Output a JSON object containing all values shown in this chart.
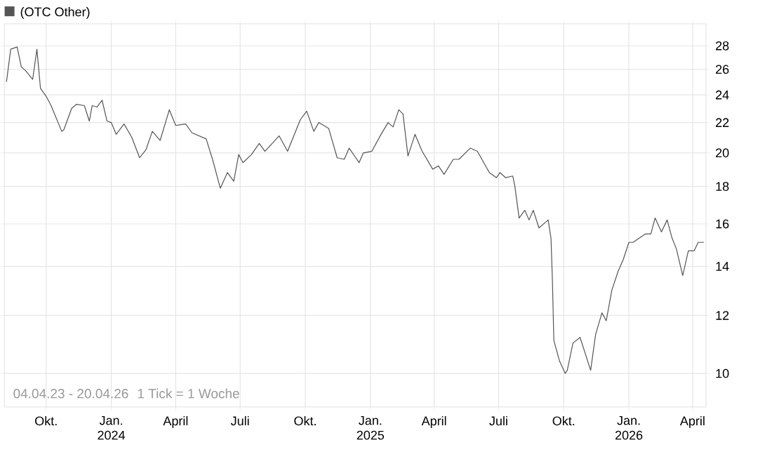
{
  "chart_data": {
    "type": "line",
    "title": "(OTC Other)",
    "annotations": [
      "04.04.23 - 20.04.26",
      "1 Tick = 1 Woche"
    ],
    "x": [
      "2023-08-06",
      "2023-08-12",
      "2023-08-21",
      "2023-08-27",
      "2023-09-02",
      "2023-09-12",
      "2023-09-18",
      "2023-09-23",
      "2023-10-01",
      "2023-10-08",
      "2023-10-23",
      "2023-10-26",
      "2023-11-06",
      "2023-11-13",
      "2023-11-24",
      "2023-12-01",
      "2023-12-05",
      "2023-12-12",
      "2023-12-19",
      "2023-12-26",
      "2024-01-01",
      "2024-01-08",
      "2024-01-19",
      "2024-01-30",
      "2024-02-10",
      "2024-02-19",
      "2024-02-28",
      "2024-03-10",
      "2024-03-23",
      "2024-04-01",
      "2024-04-15",
      "2024-04-24",
      "2024-05-14",
      "2024-05-23",
      "2024-06-03",
      "2024-06-13",
      "2024-06-22",
      "2024-06-29",
      "2024-07-05",
      "2024-07-17",
      "2024-07-28",
      "2024-08-05",
      "2024-08-25",
      "2024-09-06",
      "2024-09-24",
      "2024-10-03",
      "2024-10-13",
      "2024-10-20",
      "2024-11-03",
      "2024-11-15",
      "2024-11-25",
      "2024-12-02",
      "2024-12-16",
      "2024-12-22",
      "2025-01-03",
      "2025-01-16",
      "2025-01-26",
      "2025-02-02",
      "2025-02-10",
      "2025-02-16",
      "2025-02-23",
      "2025-03-05",
      "2025-03-15",
      "2025-03-30",
      "2025-04-07",
      "2025-04-15",
      "2025-04-28",
      "2025-05-06",
      "2025-05-22",
      "2025-06-01",
      "2025-06-18",
      "2025-06-28",
      "2025-07-03",
      "2025-07-11",
      "2025-07-21",
      "2025-07-24",
      "2025-07-30",
      "2025-08-07",
      "2025-08-13",
      "2025-08-19",
      "2025-08-27",
      "2025-09-09",
      "2025-09-13",
      "2025-09-15",
      "2025-09-17",
      "2025-09-25",
      "2025-10-03",
      "2025-10-06",
      "2025-10-14",
      "2025-10-24",
      "2025-11-01",
      "2025-11-08",
      "2025-11-15",
      "2025-11-24",
      "2025-11-30",
      "2025-12-08",
      "2025-12-17",
      "2025-12-24",
      "2026-01-01",
      "2026-01-07",
      "2026-01-24",
      "2026-02-01",
      "2026-02-07",
      "2026-02-16",
      "2026-02-24",
      "2026-03-03",
      "2026-03-09",
      "2026-03-18",
      "2026-03-26",
      "2026-04-03",
      "2026-04-09",
      "2026-04-17"
    ],
    "series": [
      {
        "color": "#555555",
        "values": [
          25.0,
          27.7,
          27.9,
          26.2,
          25.9,
          25.2,
          27.7,
          24.5,
          23.9,
          23.2,
          21.4,
          21.5,
          23.0,
          23.3,
          23.2,
          22.1,
          23.2,
          23.1,
          23.6,
          22.1,
          22.0,
          21.2,
          21.9,
          21.0,
          19.7,
          20.2,
          21.4,
          20.8,
          22.9,
          21.8,
          21.9,
          21.3,
          20.9,
          19.6,
          17.9,
          18.8,
          18.3,
          19.9,
          19.4,
          19.9,
          20.6,
          20.1,
          21.1,
          20.1,
          22.2,
          22.8,
          21.4,
          22.0,
          21.6,
          19.7,
          19.6,
          20.3,
          19.4,
          20.0,
          20.1,
          21.2,
          22.0,
          21.7,
          22.9,
          22.6,
          19.8,
          21.2,
          20.1,
          19.0,
          19.2,
          18.7,
          19.6,
          19.6,
          20.3,
          20.1,
          18.8,
          18.5,
          18.8,
          18.5,
          18.6,
          18.0,
          16.3,
          16.7,
          16.2,
          16.7,
          15.8,
          16.2,
          15.3,
          13.4,
          11.1,
          10.4,
          10.0,
          10.1,
          11.0,
          11.2,
          10.6,
          10.1,
          11.3,
          12.1,
          11.8,
          13.0,
          13.8,
          14.3,
          15.1,
          15.1,
          15.5,
          15.5,
          16.3,
          15.6,
          16.2,
          15.3,
          14.8,
          13.6,
          14.7,
          14.7,
          15.1,
          15.1
        ]
      }
    ],
    "xlim": [
      "2023-08-03",
      "2026-04-20"
    ],
    "xticks": [
      {
        "value": "2023-10-01",
        "label": "Okt."
      },
      {
        "value": "2024-01-01",
        "label": "Jan. 2024"
      },
      {
        "value": "2024-04-01",
        "label": "April"
      },
      {
        "value": "2024-07-01",
        "label": "Juli"
      },
      {
        "value": "2024-10-01",
        "label": "Okt."
      },
      {
        "value": "2025-01-01",
        "label": "Jan. 2025"
      },
      {
        "value": "2025-04-01",
        "label": "April"
      },
      {
        "value": "2025-07-01",
        "label": "Juli"
      },
      {
        "value": "2025-10-01",
        "label": "Okt."
      },
      {
        "value": "2026-01-01",
        "label": "Jan. 2026"
      },
      {
        "value": "2026-04-01",
        "label": "April"
      }
    ],
    "ylim": [
      9,
      30
    ],
    "yticks": [
      10,
      12,
      14,
      16,
      18,
      20,
      22,
      24,
      26,
      28
    ],
    "log": "y",
    "grid": true
  }
}
